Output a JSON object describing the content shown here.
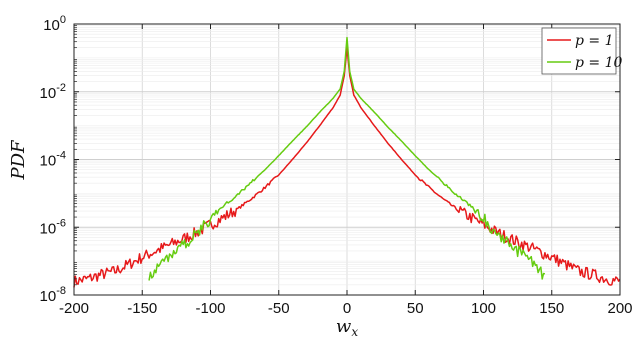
{
  "chart_data": {
    "type": "line",
    "xlabel": "w",
    "xlabel_sub": "x",
    "ylabel": "PDF",
    "xlim": [
      -200,
      200
    ],
    "ylim": [
      1e-08,
      1
    ],
    "yscale": "log",
    "grid": true,
    "legend_position": "top-right",
    "x_ticks": [
      -200,
      -150,
      -100,
      -50,
      0,
      50,
      100,
      150,
      200
    ],
    "x_tick_labels": [
      "-200",
      "-150",
      "-100",
      "-50",
      "0",
      "50",
      "100",
      "150",
      "200"
    ],
    "y_ticks": [
      {
        "value": 1,
        "base": "10",
        "exp": "0"
      },
      {
        "value": 0.01,
        "base": "10",
        "exp": "-2"
      },
      {
        "value": 0.0001,
        "base": "10",
        "exp": "-4"
      },
      {
        "value": 1e-06,
        "base": "10",
        "exp": "-6"
      },
      {
        "value": 1e-08,
        "base": "10",
        "exp": "-8"
      }
    ],
    "series": [
      {
        "name": "p = 1",
        "color": "#e6191a",
        "x": [
          -200,
          -190,
          -180,
          -170,
          -160,
          -150,
          -140,
          -130,
          -120,
          -110,
          -100,
          -90,
          -80,
          -70,
          -60,
          -50,
          -40,
          -30,
          -20,
          -10,
          -5,
          -2,
          0,
          2,
          5,
          10,
          20,
          30,
          40,
          50,
          60,
          70,
          80,
          90,
          100,
          110,
          120,
          130,
          140,
          150,
          160,
          170,
          180,
          190,
          200
        ],
        "y": [
          2.5e-08,
          3e-08,
          4e-08,
          5e-08,
          8e-08,
          1.3e-07,
          2e-07,
          3e-07,
          4.5e-07,
          7e-07,
          1.2e-06,
          2e-06,
          3.5e-06,
          7e-06,
          1.5e-05,
          3.5e-05,
          0.0001,
          0.0003,
          0.001,
          0.0035,
          0.008,
          0.03,
          0.2,
          0.03,
          0.008,
          0.0035,
          0.001,
          0.0003,
          0.0001,
          3.5e-05,
          1.5e-05,
          7e-06,
          3.5e-06,
          2e-06,
          1.2e-06,
          7e-07,
          4.5e-07,
          3e-07,
          2e-07,
          1.3e-07,
          8e-08,
          5e-08,
          4e-08,
          3e-08,
          2.5e-08
        ]
      },
      {
        "name": "p = 10",
        "color": "#66cc11",
        "x": [
          -145,
          -140,
          -135,
          -130,
          -125,
          -120,
          -110,
          -100,
          -90,
          -80,
          -70,
          -60,
          -50,
          -40,
          -30,
          -20,
          -10,
          -5,
          -2,
          0,
          2,
          5,
          10,
          20,
          30,
          40,
          50,
          60,
          70,
          80,
          90,
          100,
          110,
          120,
          125,
          130,
          135,
          140,
          145
        ],
        "y": [
          4e-08,
          5e-08,
          1e-07,
          1.5e-07,
          2e-07,
          3e-07,
          6.5e-07,
          1.8e-06,
          4.5e-06,
          9e-06,
          2.2e-05,
          5e-05,
          0.00013,
          0.00035,
          0.0009,
          0.0025,
          0.0065,
          0.012,
          0.04,
          0.4,
          0.04,
          0.012,
          0.0065,
          0.0025,
          0.0009,
          0.00035,
          0.00013,
          5e-05,
          2.2e-05,
          9e-06,
          4.5e-06,
          1.8e-06,
          6.5e-07,
          3e-07,
          2e-07,
          1.5e-07,
          1e-07,
          5e-08,
          4e-08
        ]
      }
    ]
  }
}
